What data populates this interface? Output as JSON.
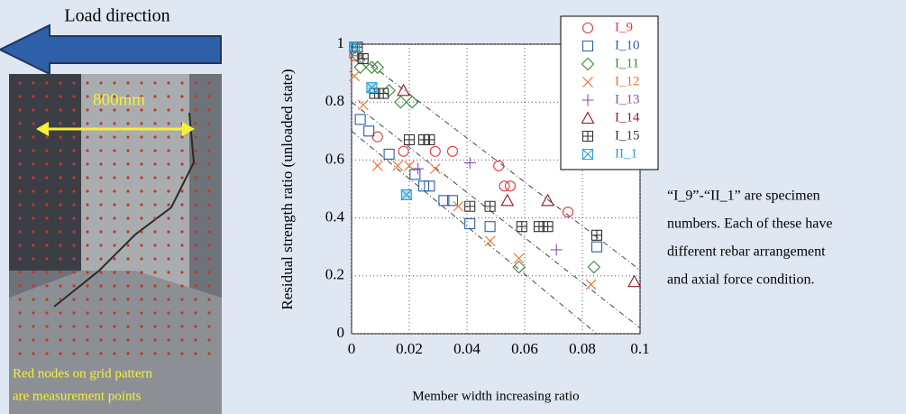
{
  "figure": {
    "load_direction": "Load direction",
    "width_label": "800mm",
    "photo_caption": [
      "Red nodes on grid pattern",
      "are measurement points"
    ]
  },
  "note": {
    "lines": [
      "“I_9”-“II_1” are specimen",
      "numbers. Each of these have",
      "different rebar arrangement",
      "and axial force condition."
    ]
  },
  "chart_data": {
    "type": "scatter",
    "x_label": "Member width increasing ratio",
    "y_label": "Residual strength ratio (unloaded state)",
    "xlim": [
      0,
      0.1
    ],
    "ylim": [
      0,
      1
    ],
    "xticks": [
      0,
      0.02,
      0.04,
      0.06,
      0.08,
      0.1
    ],
    "yticks": [
      0,
      0.2,
      0.4,
      0.6,
      0.8,
      1
    ],
    "grid": true,
    "grid_style": "dotted",
    "legend": "upper right",
    "series": [
      {
        "name": "I_9",
        "color": "#e0393e",
        "marker": "circle",
        "x": [
          0.001,
          0.009,
          0.018,
          0.029,
          0.035,
          0.051,
          0.053,
          0.055,
          0.075
        ],
        "values": [
          0.96,
          0.68,
          0.63,
          0.63,
          0.63,
          0.58,
          0.51,
          0.51,
          0.42
        ]
      },
      {
        "name": "I_10",
        "color": "#2e5ea8",
        "marker": "square",
        "x": [
          0.001,
          0.003,
          0.006,
          0.013,
          0.022,
          0.025,
          0.027,
          0.032,
          0.035,
          0.041,
          0.048,
          0.085
        ],
        "values": [
          0.99,
          0.74,
          0.7,
          0.62,
          0.55,
          0.51,
          0.51,
          0.46,
          0.46,
          0.38,
          0.37,
          0.3
        ]
      },
      {
        "name": "I_11",
        "color": "#3a8a3a",
        "marker": "diamond",
        "x": [
          0.002,
          0.003,
          0.007,
          0.009,
          0.013,
          0.017,
          0.021,
          0.058,
          0.084
        ],
        "values": [
          0.96,
          0.92,
          0.92,
          0.92,
          0.84,
          0.8,
          0.8,
          0.23,
          0.23
        ]
      },
      {
        "name": "I_12",
        "color": "#f07030",
        "marker": "x",
        "x": [
          0.001,
          0.004,
          0.009,
          0.016,
          0.02,
          0.029,
          0.037,
          0.048,
          0.058,
          0.083
        ],
        "values": [
          0.89,
          0.79,
          0.58,
          0.58,
          0.58,
          0.57,
          0.44,
          0.32,
          0.26,
          0.17
        ]
      },
      {
        "name": "I_13",
        "color": "#8a4fb0",
        "marker": "plus",
        "x": [
          0.002,
          0.023,
          0.041,
          0.071
        ],
        "values": [
          0.96,
          0.57,
          0.59,
          0.29
        ]
      },
      {
        "name": "I_14",
        "color": "#8b1a2a",
        "marker": "triangle",
        "x": [
          0.018,
          0.054,
          0.068,
          0.098
        ],
        "values": [
          0.84,
          0.46,
          0.46,
          0.18
        ]
      },
      {
        "name": "I_15",
        "color": "#333333",
        "marker": "boxplus",
        "x": [
          0.002,
          0.004,
          0.008,
          0.011,
          0.02,
          0.025,
          0.027,
          0.041,
          0.048,
          0.059,
          0.065,
          0.068,
          0.085
        ],
        "values": [
          0.99,
          0.95,
          0.83,
          0.83,
          0.67,
          0.67,
          0.67,
          0.44,
          0.44,
          0.37,
          0.37,
          0.37,
          0.34
        ]
      },
      {
        "name": "II_1",
        "color": "#2a9fd6",
        "marker": "boxx",
        "x": [
          0.001,
          0.007,
          0.019
        ],
        "values": [
          0.99,
          0.85,
          0.48
        ]
      }
    ],
    "reference_lines": [
      {
        "x": [
          0,
          0.1
        ],
        "y": [
          0.98,
          0.22
        ]
      },
      {
        "x": [
          0,
          0.1
        ],
        "y": [
          0.8,
          0.02
        ]
      },
      {
        "x": [
          0,
          0.085
        ],
        "y": [
          0.7,
          0
        ]
      }
    ]
  }
}
